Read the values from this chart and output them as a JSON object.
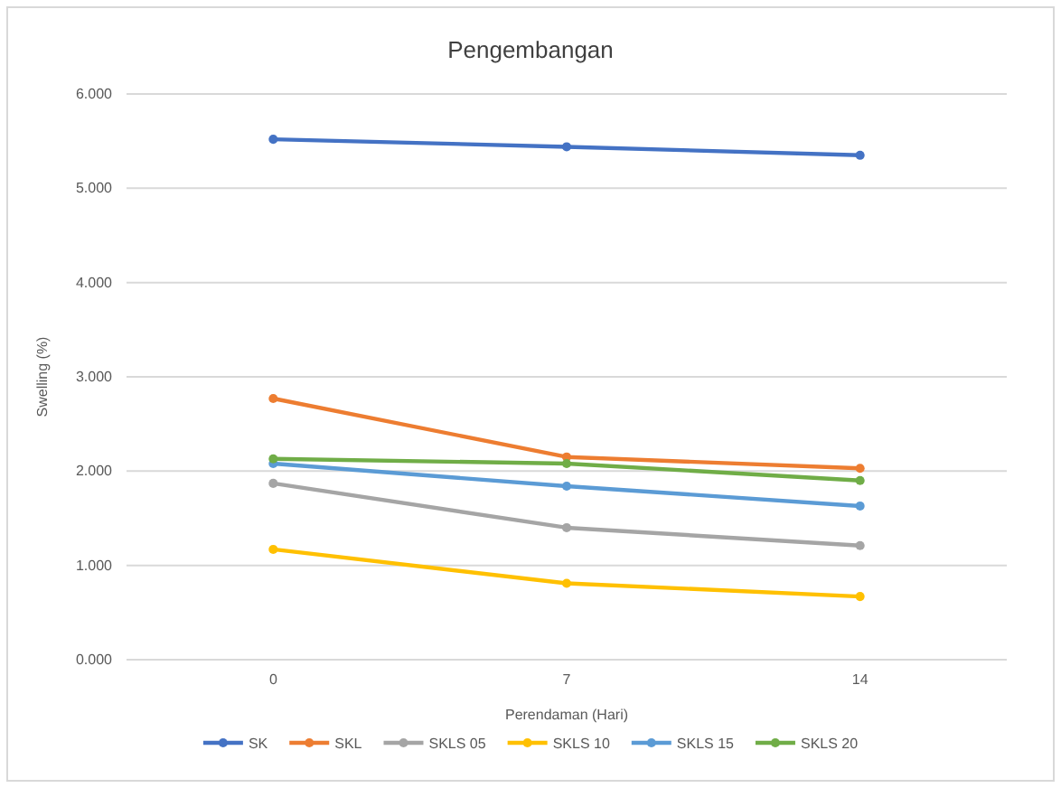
{
  "chart_data": {
    "type": "line",
    "title": "Pengembangan",
    "xlabel": "Perendaman (Hari)",
    "ylabel": "Swelling (%)",
    "categories": [
      "0",
      "7",
      "14"
    ],
    "series": [
      {
        "name": "SK",
        "color": "#4472c4",
        "values": [
          5.52,
          5.44,
          5.35
        ]
      },
      {
        "name": "SKL",
        "color": "#ed7d31",
        "values": [
          2.77,
          2.15,
          2.03
        ]
      },
      {
        "name": "SKLS 05",
        "color": "#a5a5a5",
        "values": [
          1.87,
          1.4,
          1.21
        ]
      },
      {
        "name": "SKLS 10",
        "color": "#ffc000",
        "values": [
          1.17,
          0.81,
          0.67
        ]
      },
      {
        "name": "SKLS 15",
        "color": "#5b9bd5",
        "values": [
          2.08,
          1.84,
          1.63
        ]
      },
      {
        "name": "SKLS 20",
        "color": "#70ad47",
        "values": [
          2.13,
          2.08,
          1.9
        ]
      }
    ],
    "ylim": [
      0,
      6
    ],
    "yticks": [
      {
        "value": 0,
        "label": "0.000"
      },
      {
        "value": 1,
        "label": "1.000"
      },
      {
        "value": 2,
        "label": "2.000"
      },
      {
        "value": 3,
        "label": "3.000"
      },
      {
        "value": 4,
        "label": "4.000"
      },
      {
        "value": 5,
        "label": "5.000"
      },
      {
        "value": 6,
        "label": "6.000"
      }
    ],
    "grid": "y",
    "legend": "bottom",
    "marker": "circle",
    "line_style": "solid"
  }
}
